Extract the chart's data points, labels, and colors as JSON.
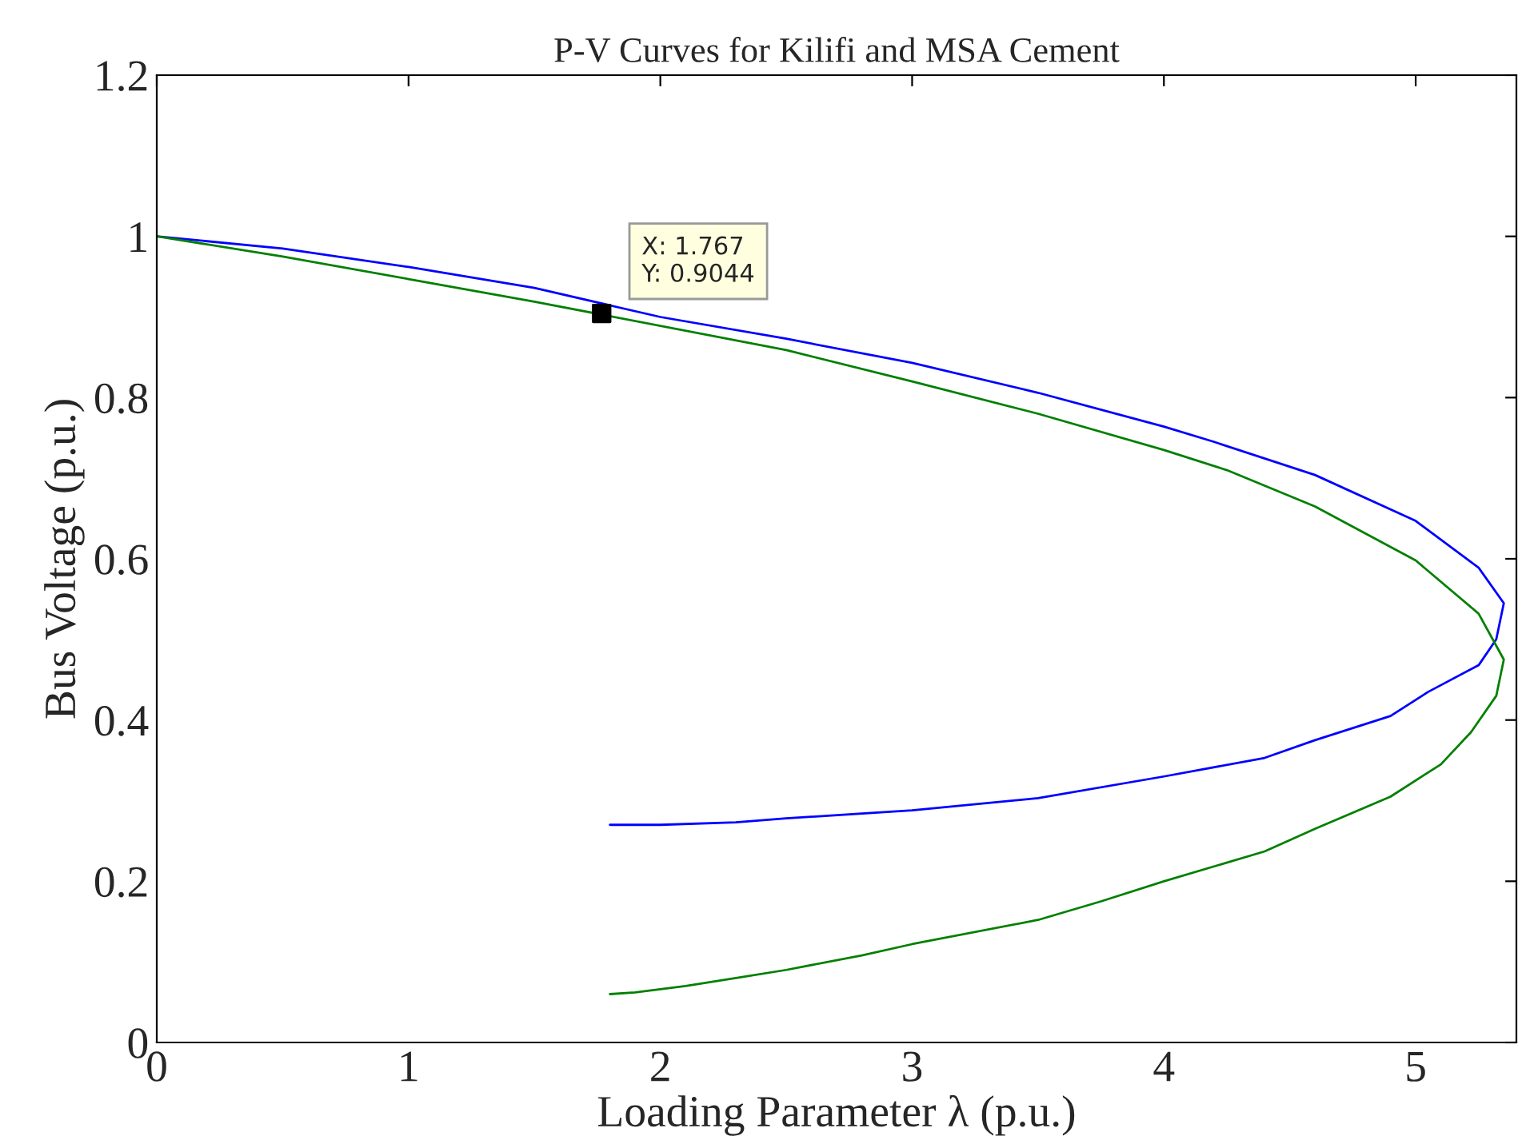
{
  "chart_data": {
    "type": "line",
    "title": "P-V Curves for Kilifi and MSA Cement",
    "xlabel": "Loading Parameter λ (p.u.)",
    "ylabel": "Bus Voltage (p.u.)",
    "xlim": [
      0,
      5.4
    ],
    "xticks": [
      0,
      1,
      2,
      3,
      4,
      5
    ],
    "ylim": [
      0,
      1.2
    ],
    "yticks": [
      0,
      0.2,
      0.4,
      0.6,
      0.8,
      1,
      1.2
    ],
    "grid": false,
    "legend": false,
    "marker": "none",
    "line_style": "solid",
    "series": [
      {
        "color": "#0000ff",
        "x": [
          0,
          0.5,
          1,
          1.5,
          2,
          2.5,
          3,
          3.5,
          4,
          4.2,
          4.6,
          5,
          5.25,
          5.35,
          5.32,
          5.25,
          5.05,
          4.9,
          4.6,
          4.4,
          4,
          3.5,
          3,
          2.5,
          2.3,
          2,
          1.8
        ],
        "values": [
          1,
          0.985,
          0.962,
          0.936,
          0.9,
          0.873,
          0.843,
          0.806,
          0.764,
          0.745,
          0.704,
          0.647,
          0.589,
          0.545,
          0.5,
          0.468,
          0.435,
          0.405,
          0.375,
          0.353,
          0.33,
          0.303,
          0.288,
          0.278,
          0.273,
          0.27,
          0.27
        ]
      },
      {
        "color": "#008000",
        "x": [
          0,
          0.5,
          1,
          1.5,
          2.5,
          3,
          3.5,
          4,
          4.25,
          4.6,
          5,
          5.25,
          5.35,
          5.32,
          5.22,
          5.1,
          4.9,
          4.6,
          4.4,
          4,
          3.75,
          3.5,
          3,
          2.8,
          2.5,
          2.3,
          2.1,
          1.9,
          1.8
        ],
        "values": [
          1,
          0.975,
          0.947,
          0.919,
          0.859,
          0.82,
          0.78,
          0.735,
          0.71,
          0.665,
          0.598,
          0.532,
          0.475,
          0.43,
          0.385,
          0.345,
          0.305,
          0.265,
          0.237,
          0.2,
          0.175,
          0.152,
          0.122,
          0.108,
          0.09,
          0.08,
          0.07,
          0.062,
          0.06
        ]
      },
      {
        "type": "scatter",
        "marker": "square",
        "color": "#000000",
        "x": [
          1.767
        ],
        "values": [
          0.9044
        ]
      }
    ],
    "annotations": [
      {
        "text": "X: 1.767\nY: 0.9044",
        "x": 1.767,
        "y": 0.9044
      }
    ]
  }
}
